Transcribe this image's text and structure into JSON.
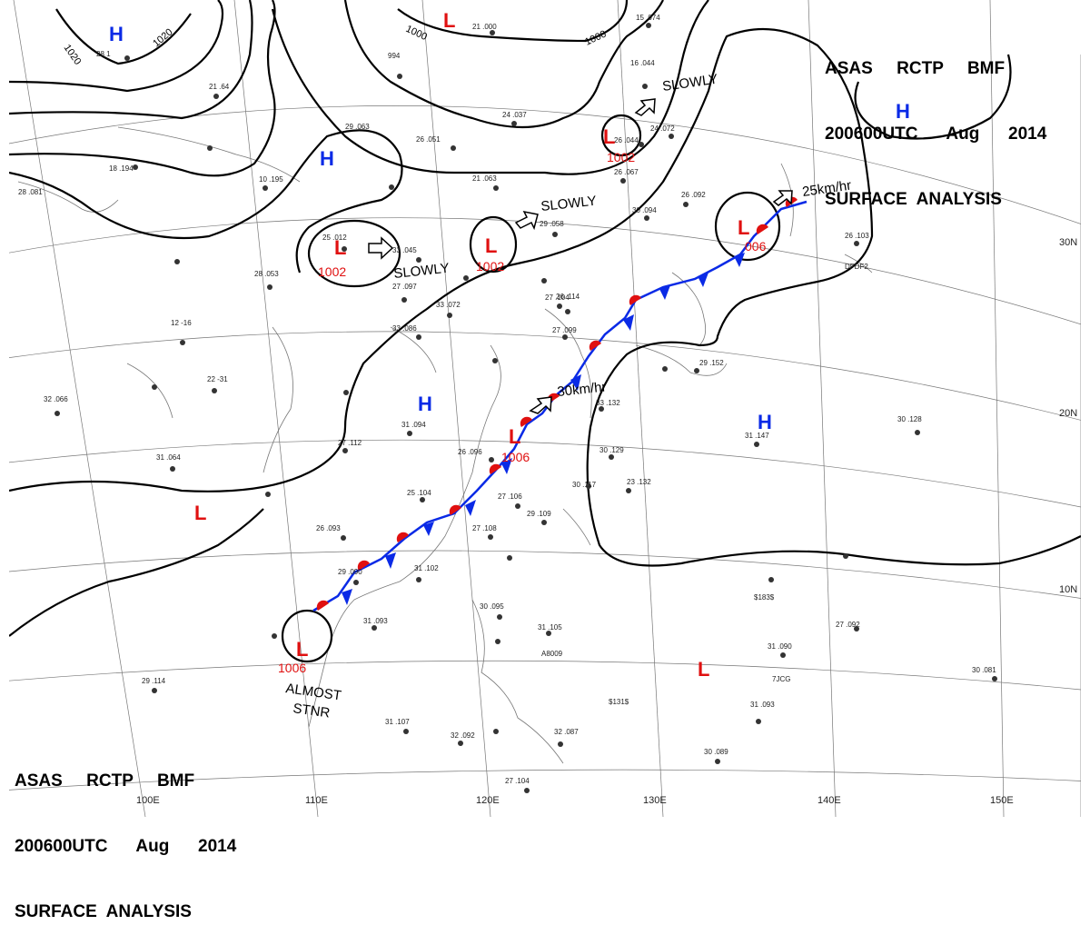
{
  "header": {
    "line1": "ASAS     RCTP     BMF",
    "line2": "200600UTC      Aug      2014",
    "line3": "SURFACE  ANALYSIS"
  },
  "colors": {
    "high": "#0a2ae6",
    "low": "#e01010",
    "warm_front": "#e01010",
    "cold_front": "#0a2ae6",
    "isobar": "#000000",
    "grid": "#777777"
  },
  "longitudes": [
    "100E",
    "110E",
    "120E",
    "130E",
    "140E",
    "150E"
  ],
  "latitudes": [
    "30N",
    "20N",
    "10N"
  ],
  "isobar_labels": [
    "1020",
    "1020",
    "1000",
    "1000"
  ],
  "highs": [
    {
      "label": "H"
    },
    {
      "label": "H"
    },
    {
      "label": "H"
    },
    {
      "label": "H"
    },
    {
      "label": "H"
    }
  ],
  "lows": [
    {
      "label": "L",
      "pressure": ""
    },
    {
      "label": "L",
      "pressure": "1002"
    },
    {
      "label": "L",
      "pressure": "1002"
    },
    {
      "label": "L",
      "pressure": "1002"
    },
    {
      "label": "L",
      "pressure": "1006"
    },
    {
      "label": "L",
      "pressure": "006"
    },
    {
      "label": "L",
      "pressure": "1006"
    },
    {
      "label": "L",
      "pressure": ""
    },
    {
      "label": "L",
      "pressure": ""
    }
  ],
  "motion_labels": [
    "SLOWLY",
    "SLOWLY",
    "SLOWLY",
    "25km/hr",
    "30km/hr",
    "ALMOST",
    "STNR"
  ],
  "stations": [
    "28 1",
    "994",
    "21 .64",
    "29 .063",
    "26 .051",
    "24 .037",
    "21 .000",
    "15 .074",
    "16 .044",
    "26 .044",
    "26 .067",
    "21 .063",
    "24 .072",
    "10 .195",
    "28 .081",
    "18 .194",
    "25 .012",
    "33 .045",
    "28 .053",
    "27 .097",
    "29 .058",
    "33 .072",
    "12 -16",
    "33 .086",
    "27 .104",
    "22 -31",
    "32 .066",
    "31 .064",
    "31 .094",
    "27 .112",
    "26 .096",
    "25 .104",
    "27 .106",
    "26 .093",
    "29 .109",
    "27 .108",
    "31 .102",
    "29 .090",
    "31 .093",
    "31 .105",
    "30 .095",
    "29 .114",
    "31 .107",
    "32 .092",
    "32 .087",
    "27 .104",
    "30 .089",
    "31 .093",
    "27 .092",
    "31 .090",
    "30 .081",
    "30 .128",
    "31 .147",
    "29 .152",
    "33 .132",
    "30 .117",
    "30 .129",
    "23 .132",
    "30 .094",
    "26 .092",
    "26 .103",
    "26 .114",
    "27 .099",
    "A8009",
    "$183$",
    "$131$",
    "7JCG",
    "DFDF2"
  ]
}
